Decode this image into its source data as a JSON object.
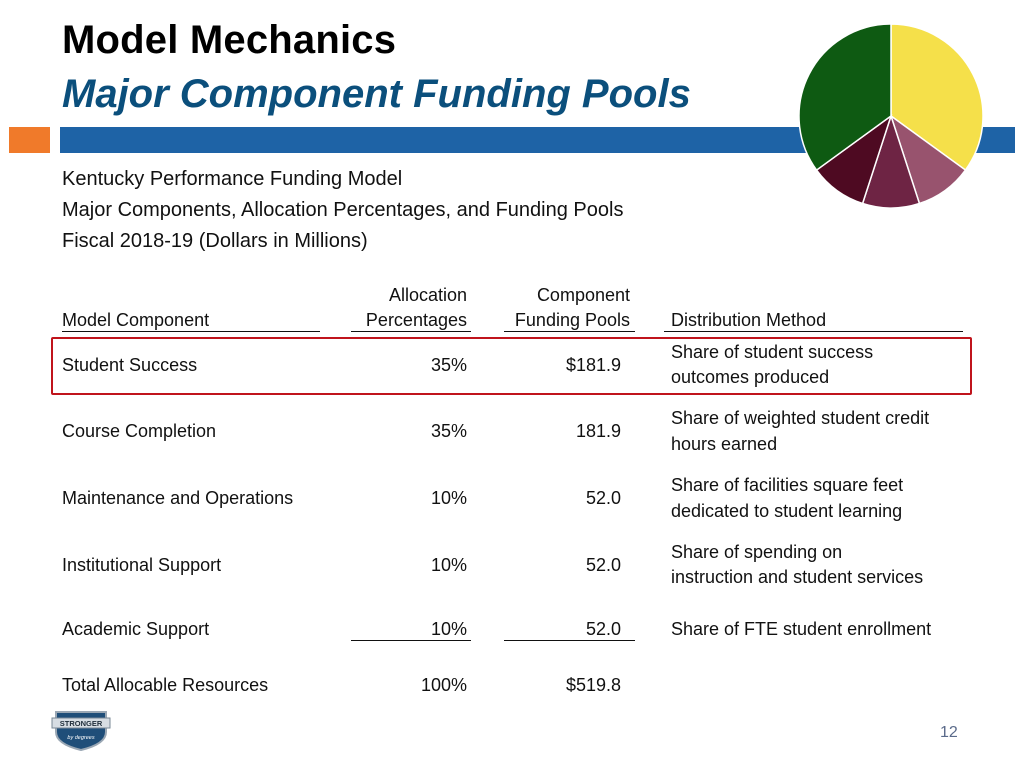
{
  "slide": {
    "title": "Model Mechanics",
    "subtitle": "Major Component Funding Pools",
    "page_number": "12",
    "colors": {
      "title_blue": "#0b4f7c",
      "bar_blue": "#1e63a6",
      "bar_orange": "#f07a2a",
      "highlight_red": "#c0141c"
    }
  },
  "caption": [
    "Kentucky Performance Funding Model",
    "Major Components, Allocation Percentages, and Funding Pools",
    "Fiscal 2018-19 (Dollars in Millions)"
  ],
  "table": {
    "headers": {
      "component": "Model Component",
      "allocation_top": "Allocation",
      "allocation_bottom": "Percentages",
      "pools_top": "Component",
      "pools_bottom": "Funding Pools",
      "method": "Distribution Method"
    },
    "rows": [
      {
        "component": "Student Success",
        "allocation": "35%",
        "pool": "$181.9",
        "method_1": "Share of student success",
        "method_2": "outcomes produced"
      },
      {
        "component": "Course Completion",
        "allocation": "35%",
        "pool": "181.9",
        "method_1": "Share of weighted student credit",
        "method_2": "hours earned"
      },
      {
        "component": "Maintenance and Operations",
        "allocation": "10%",
        "pool": "52.0",
        "method_1": "Share of facilities square feet",
        "method_2": "dedicated to student learning"
      },
      {
        "component": "Institutional Support",
        "allocation": "10%",
        "pool": "52.0",
        "method_1": "Share of spending on",
        "method_2": "instruction and student services"
      },
      {
        "component": "Academic Support",
        "allocation": "10%",
        "pool": "52.0",
        "method_1": "Share of FTE student enrollment",
        "method_2": ""
      }
    ],
    "total": {
      "component": "Total Allocable Resources",
      "allocation": "100%",
      "pool": "$519.8"
    }
  },
  "pie": {
    "slices": [
      {
        "value": 35,
        "color": "#f5e04a"
      },
      {
        "value": 10,
        "color": "#98536e"
      },
      {
        "value": 10,
        "color": "#6e2444"
      },
      {
        "value": 10,
        "color": "#4e0a22"
      },
      {
        "value": 35,
        "color": "#0e5a12"
      }
    ]
  },
  "logo": {
    "text_1": "STRONGER",
    "text_2": "by degrees"
  }
}
